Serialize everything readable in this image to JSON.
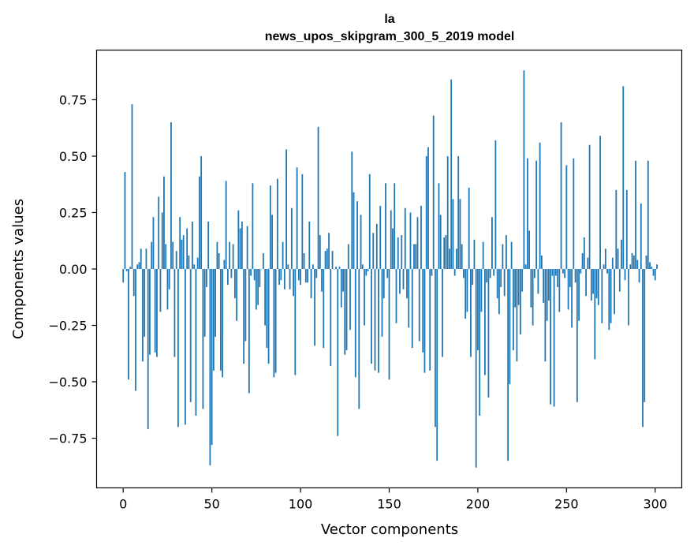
{
  "chart_data": {
    "type": "bar",
    "title_line1": "la",
    "title_line2": "news_upos_skipgram_300_5_2019 model",
    "xlabel": "Vector components",
    "ylabel": "Components values",
    "xlim": [
      -15,
      315
    ],
    "ylim": [
      -0.97,
      0.97
    ],
    "x_ticks": [
      0,
      50,
      100,
      150,
      200,
      250,
      300
    ],
    "x_tick_labels": [
      "0",
      "50",
      "100",
      "150",
      "200",
      "250",
      "300"
    ],
    "y_ticks": [
      -0.75,
      -0.5,
      -0.25,
      0.0,
      0.25,
      0.5,
      0.75
    ],
    "y_tick_labels": [
      "−0.75",
      "−0.50",
      "−0.25",
      "0.00",
      "0.25",
      "0.50",
      "0.75"
    ],
    "bar_color": "#1f77b4",
    "values": [
      -0.06,
      0.43,
      -0.01,
      -0.49,
      0.01,
      0.73,
      -0.12,
      -0.54,
      0.02,
      0.03,
      0.09,
      -0.41,
      -0.3,
      0.09,
      -0.71,
      -0.38,
      0.12,
      0.23,
      -0.37,
      -0.39,
      0.32,
      -0.19,
      0.25,
      0.41,
      0.11,
      -0.18,
      -0.09,
      0.65,
      0.12,
      -0.39,
      0.08,
      -0.7,
      0.23,
      0.13,
      0.15,
      -0.69,
      0.18,
      0.06,
      -0.59,
      0.21,
      0.02,
      -0.65,
      0.05,
      0.41,
      0.5,
      -0.62,
      -0.3,
      -0.08,
      0.21,
      -0.87,
      -0.78,
      -0.45,
      -0.3,
      0.12,
      0.07,
      -0.45,
      -0.48,
      0.04,
      0.39,
      -0.07,
      0.12,
      -0.04,
      0.11,
      -0.13,
      -0.23,
      0.26,
      0.18,
      0.21,
      -0.42,
      -0.32,
      0.19,
      -0.55,
      -0.03,
      0.38,
      -0.05,
      -0.18,
      -0.16,
      -0.08,
      0.0,
      0.07,
      -0.25,
      -0.35,
      -0.42,
      0.37,
      0.24,
      -0.48,
      -0.46,
      0.4,
      -0.07,
      -0.05,
      0.12,
      -0.09,
      0.53,
      0.02,
      -0.09,
      0.27,
      -0.12,
      -0.47,
      0.45,
      -0.05,
      -0.07,
      0.42,
      0.07,
      -0.06,
      -0.06,
      0.21,
      -0.13,
      0.02,
      -0.34,
      -0.04,
      0.63,
      0.15,
      -0.1,
      -0.35,
      0.08,
      0.09,
      0.16,
      -0.43,
      0.08,
      0.0,
      0.01,
      -0.74,
      0.01,
      -0.17,
      -0.1,
      -0.38,
      -0.36,
      0.11,
      -0.27,
      0.52,
      0.34,
      -0.48,
      0.3,
      -0.62,
      0.24,
      0.02,
      -0.25,
      -0.03,
      -0.01,
      0.42,
      -0.42,
      0.16,
      -0.45,
      0.2,
      -0.46,
      0.28,
      -0.3,
      -0.13,
      0.38,
      -0.04,
      -0.49,
      0.26,
      0.18,
      0.38,
      -0.24,
      0.14,
      -0.11,
      0.15,
      -0.09,
      0.27,
      -0.13,
      -0.26,
      0.25,
      -0.35,
      0.11,
      0.11,
      0.23,
      -0.32,
      0.28,
      -0.37,
      -0.46,
      0.5,
      0.54,
      -0.45,
      -0.03,
      0.68,
      -0.7,
      -0.85,
      0.38,
      0.24,
      -0.39,
      0.14,
      0.15,
      0.5,
      0.09,
      0.84,
      0.31,
      -0.03,
      0.09,
      0.5,
      0.31,
      0.11,
      -0.04,
      -0.22,
      -0.19,
      0.36,
      -0.39,
      -0.07,
      0.13,
      -0.88,
      -0.36,
      -0.65,
      -0.19,
      0.12,
      -0.47,
      -0.06,
      -0.57,
      -0.04,
      0.23,
      -0.03,
      0.57,
      -0.13,
      -0.2,
      -0.08,
      0.11,
      -0.12,
      0.15,
      -0.85,
      -0.51,
      0.12,
      -0.36,
      -0.17,
      -0.41,
      -0.16,
      -0.29,
      -0.1,
      0.88,
      0.02,
      0.49,
      0.17,
      -0.17,
      -0.25,
      -0.04,
      0.48,
      -0.11,
      0.56,
      0.06,
      -0.15,
      -0.41,
      -0.23,
      -0.14,
      -0.6,
      -0.03,
      -0.61,
      -0.03,
      -0.08,
      -0.19,
      0.65,
      -0.02,
      -0.04,
      0.46,
      -0.18,
      -0.08,
      -0.26,
      0.49,
      -0.06,
      -0.59,
      -0.23,
      -0.02,
      0.07,
      0.14,
      -0.12,
      0.05,
      0.55,
      -0.14,
      -0.11,
      -0.4,
      -0.13,
      -0.16,
      0.59,
      -0.24,
      0.02,
      0.09,
      -0.02,
      -0.27,
      -0.24,
      0.05,
      -0.2,
      0.35,
      0.09,
      -0.1,
      0.13,
      0.81,
      -0.05,
      0.35,
      -0.25,
      0.02,
      0.07,
      0.06,
      0.48,
      0.04,
      -0.06,
      0.29,
      -0.7,
      -0.59,
      0.06,
      0.48,
      0.03,
      0.01,
      -0.03,
      -0.05,
      0.02
    ]
  }
}
